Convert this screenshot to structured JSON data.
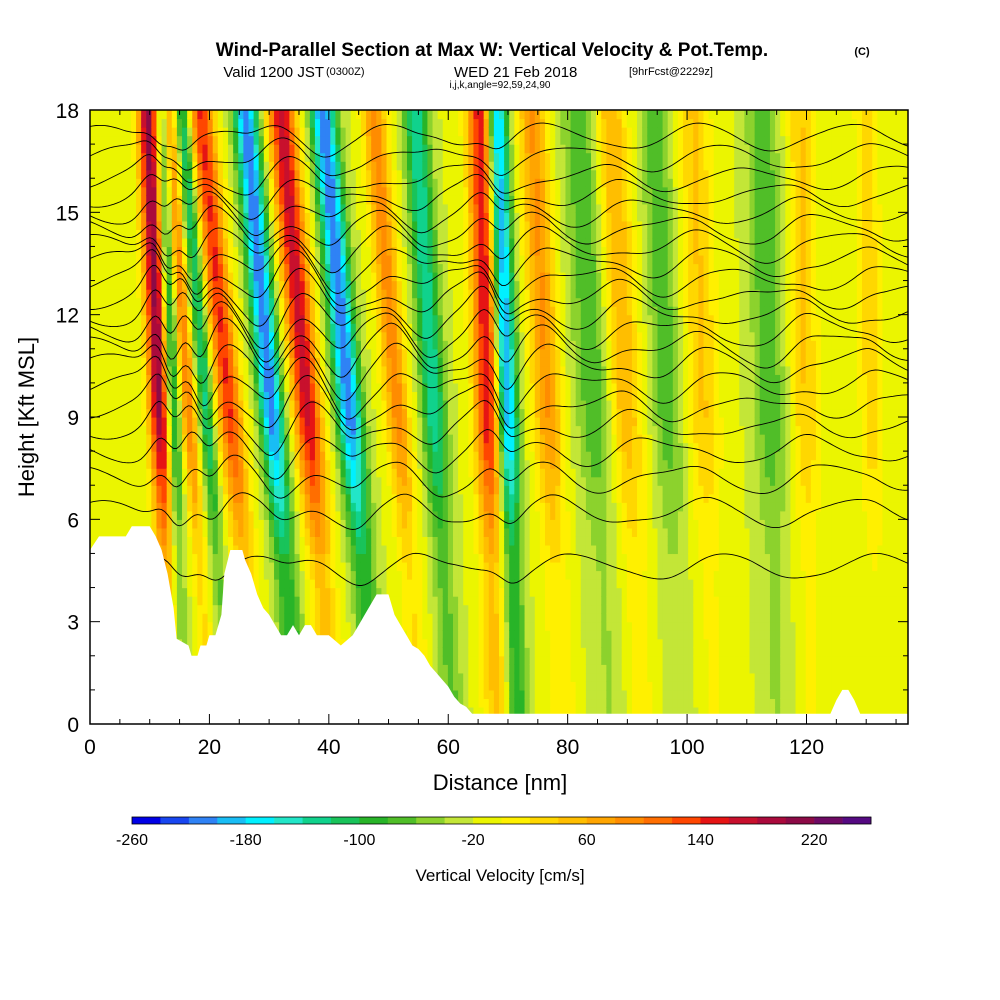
{
  "header": {
    "title": "Wind-Parallel Section at Max W: Vertical Velocity & Pot.Temp.",
    "copyright": "(C)",
    "valid_prefix": "Valid 1200 JST",
    "valid_utc": "(0300Z)",
    "valid_date": "WED 21 Feb 2018",
    "forecast": "[9hrFcst@2229z]",
    "params": "i,j,k,angle=92,59,24,90"
  },
  "chart_data": {
    "type": "heatmap",
    "xlabel": "Distance [nm]",
    "ylabel": "Height [Kft MSL]",
    "xlim": [
      0,
      137
    ],
    "ylim": [
      0,
      18
    ],
    "xticks": [
      0,
      20,
      40,
      60,
      80,
      100,
      120
    ],
    "yticks": [
      0,
      3,
      6,
      9,
      12,
      15,
      18
    ],
    "grid": false,
    "colorbar": {
      "label": "Vertical Velocity [cm/s]",
      "tick_labels": [
        -260,
        -180,
        -100,
        -20,
        60,
        140,
        220
      ],
      "range": [
        -260,
        260
      ],
      "step": 20,
      "colors": [
        "#0000e6",
        "#1846f0",
        "#2f82f5",
        "#19bdf5",
        "#00f0ff",
        "#22e6c8",
        "#10d28c",
        "#19c35a",
        "#28b428",
        "#50be28",
        "#8cd22d",
        "#c3e637",
        "#ebf500",
        "#fff000",
        "#ffd700",
        "#ffbe00",
        "#ffa500",
        "#ff8c00",
        "#ff6e00",
        "#ff4600",
        "#e61414",
        "#c8102d",
        "#aa0a3c",
        "#8c0a46",
        "#6e0a64",
        "#550a82"
      ]
    },
    "terrain_kft": [
      [
        0,
        5.1
      ],
      [
        1.5,
        5.5
      ],
      [
        6,
        5.5
      ],
      [
        7,
        5.8
      ],
      [
        10,
        5.8
      ],
      [
        11,
        5.5
      ],
      [
        12,
        5.1
      ],
      [
        13,
        4.4
      ],
      [
        14,
        3.4
      ],
      [
        14.5,
        2.5
      ],
      [
        16.5,
        2.3
      ],
      [
        17,
        2
      ],
      [
        18,
        2
      ],
      [
        18.5,
        2.3
      ],
      [
        19.5,
        2.3
      ],
      [
        20,
        2.6
      ],
      [
        21,
        2.6
      ],
      [
        22,
        3.2
      ],
      [
        22.5,
        4.4
      ],
      [
        23.5,
        5.1
      ],
      [
        25.5,
        5.1
      ],
      [
        26,
        4.8
      ],
      [
        27,
        4.4
      ],
      [
        28,
        3.8
      ],
      [
        29,
        3.4
      ],
      [
        30,
        3.2
      ],
      [
        31,
        2.9
      ],
      [
        32,
        2.6
      ],
      [
        33,
        2.6
      ],
      [
        34,
        2.9
      ],
      [
        35,
        2.6
      ],
      [
        36,
        2.9
      ],
      [
        37,
        2.9
      ],
      [
        38,
        2.6
      ],
      [
        40,
        2.6
      ],
      [
        42,
        2.3
      ],
      [
        44,
        2.6
      ],
      [
        45,
        2.9
      ],
      [
        46,
        3.2
      ],
      [
        47,
        3.5
      ],
      [
        48,
        3.8
      ],
      [
        50,
        3.8
      ],
      [
        51,
        3.2
      ],
      [
        52,
        2.9
      ],
      [
        53,
        2.6
      ],
      [
        54,
        2.3
      ],
      [
        55,
        2.2
      ],
      [
        56,
        2
      ],
      [
        57,
        1.7
      ],
      [
        58,
        1.5
      ],
      [
        59,
        1.3
      ],
      [
        60,
        1.1
      ],
      [
        61,
        0.8
      ],
      [
        62,
        0.6
      ],
      [
        63,
        0.5
      ],
      [
        64,
        0.3
      ],
      [
        81,
        0.3
      ],
      [
        124,
        0.3
      ],
      [
        125,
        0.7
      ],
      [
        126,
        1
      ],
      [
        127,
        1
      ],
      [
        128,
        0.7
      ],
      [
        129,
        0.3
      ],
      [
        137,
        0.3
      ]
    ],
    "updraft_bands": [
      {
        "x0": 12,
        "slope": -0.22,
        "amp": 230,
        "width": 1.8
      },
      {
        "x0": 17,
        "slope": -0.4,
        "amp": 120,
        "width": 1.3
      },
      {
        "x0": 24,
        "slope": -0.55,
        "amp": 160,
        "width": 2.1
      },
      {
        "x0": 37,
        "slope": -0.5,
        "amp": 190,
        "width": 2.3
      },
      {
        "x0": 52,
        "slope": -0.45,
        "amp": 110,
        "width": 2.0
      },
      {
        "x0": 67,
        "slope": -0.15,
        "amp": 190,
        "width": 2.3
      },
      {
        "x0": 77,
        "slope": -0.3,
        "amp": 100,
        "width": 2.4
      },
      {
        "x0": 90,
        "slope": -0.3,
        "amp": 80,
        "width": 2.8
      },
      {
        "x0": 103,
        "slope": -0.2,
        "amp": 60,
        "width": 2.7
      },
      {
        "x0": 120,
        "slope": -0.1,
        "amp": 60,
        "width": 2.2
      },
      {
        "x0": 131,
        "slope": -0.1,
        "amp": 50,
        "width": 2.0
      }
    ],
    "downdraft_bands": [
      {
        "x0": 14,
        "slope": -0.2,
        "amp": -130,
        "width": 1.3
      },
      {
        "x0": 20,
        "slope": -0.45,
        "amp": -110,
        "width": 1.3
      },
      {
        "x0": 31,
        "slope": -0.5,
        "amp": -200,
        "width": 2.0
      },
      {
        "x0": 44,
        "slope": -0.5,
        "amp": -200,
        "width": 2.1
      },
      {
        "x0": 58,
        "slope": -0.35,
        "amp": -120,
        "width": 2.0
      },
      {
        "x0": 70,
        "slope": -0.2,
        "amp": -210,
        "width": 1.8
      },
      {
        "x0": 85,
        "slope": -0.3,
        "amp": -60,
        "width": 3.2
      },
      {
        "x0": 97,
        "slope": -0.25,
        "amp": -55,
        "width": 2.6
      },
      {
        "x0": 114,
        "slope": -0.15,
        "amp": -60,
        "width": 2.6
      }
    ],
    "theta_isentropes": {
      "count": 21,
      "base_heights_kft": [
        4.6,
        6.2,
        7.2,
        8.0,
        8.7,
        9.3,
        9.9,
        10.5,
        11.0,
        11.5,
        12.0,
        12.5,
        13.0,
        13.5,
        14.0,
        14.5,
        15.0,
        15.5,
        16.0,
        16.6,
        17.2
      ]
    }
  }
}
